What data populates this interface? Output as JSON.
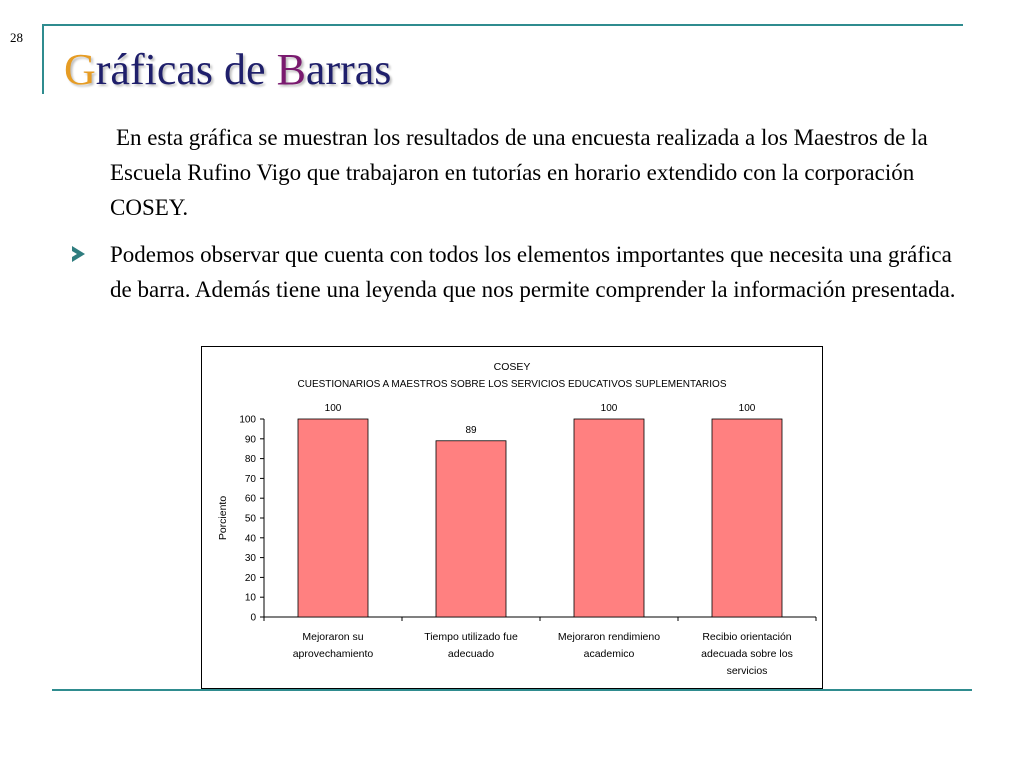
{
  "slide": {
    "number": "28"
  },
  "title": {
    "first_letter": "G",
    "middle": "ráficas de ",
    "second_letter": "B",
    "rest": "arras"
  },
  "body": {
    "paragraph": "En esta gráfica se muestran los resultados de una encuesta realizada a los Maestros de la Escuela Rufino Vigo que trabajaron en tutorías en horario extendido con la corporación COSEY.",
    "bullet": "Podemos observar que cuenta con todos los elementos importantes que necesita una gráfica de barra.  Además tiene una leyenda que nos permite comprender la información presentada."
  },
  "colors": {
    "accent_line": "#2f8c8f",
    "bar_fill": "#ff8080",
    "title_text": "#1f1f6b",
    "title_G": "#e69c24",
    "title_B": "#7a1a6f"
  },
  "chart_data": {
    "type": "bar",
    "title": "COSEY",
    "subtitle": "CUESTIONARIOS A MAESTROS SOBRE LOS SERVICIOS EDUCATIVOS SUPLEMENTARIOS",
    "ylabel": "Porciento",
    "xlabel": "",
    "ylim": [
      0,
      100
    ],
    "yticks": [
      0,
      10,
      20,
      30,
      40,
      50,
      60,
      70,
      80,
      90,
      100
    ],
    "categories": [
      "Mejoraron su aprovechamiento",
      "Tiempo utilizado fue adecuado",
      "Mejoraron rendimieno academico",
      "Recibio orientación adecuada sobre los servicios"
    ],
    "values": [
      100,
      89,
      100,
      100
    ],
    "data_labels": true,
    "grid": false,
    "legend": "none"
  }
}
